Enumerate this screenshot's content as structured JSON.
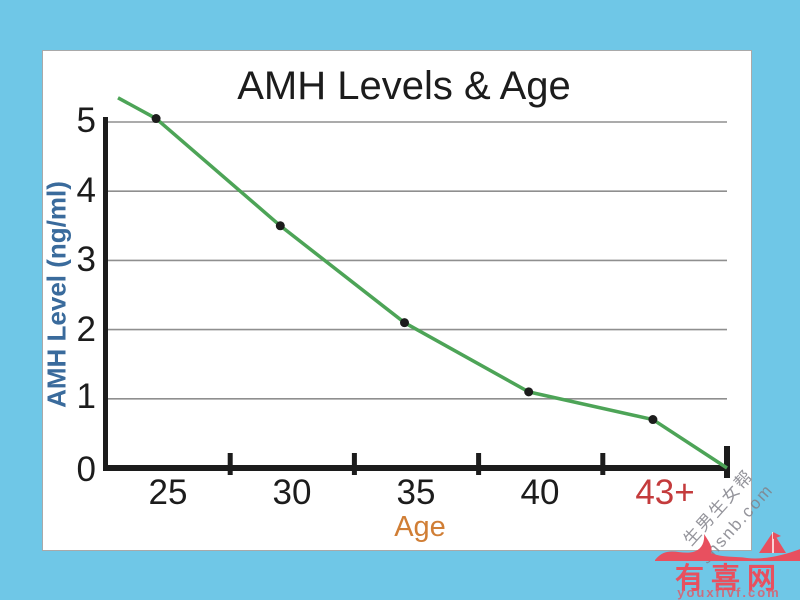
{
  "colors": {
    "background": "#6fc7e7",
    "panel": "#ffffff",
    "panel_border": "#a9a9a9",
    "text": "#1c1c1c",
    "grid": "#8f8f8f",
    "axis": "#1c1c1c",
    "line": "#4da457",
    "point": "#1c1c1c",
    "ylabel_text": "#3a6b9c",
    "xlabel_text": "#d07e35",
    "highlight": "#c43b3c",
    "watermark": "#82828a",
    "logo": "#e8505f",
    "logo_url": "#cb6e7e"
  },
  "chart_data": {
    "type": "line",
    "title": "AMH Levels & Age",
    "xlabel": "Age",
    "ylabel": "AMH Level (ng/ml)",
    "categories": [
      "25",
      "30",
      "35",
      "40",
      "43+"
    ],
    "values": [
      5.05,
      3.5,
      2.1,
      1.1,
      0.7
    ],
    "y_ticks": [
      "5",
      "4",
      "3",
      "2",
      "1",
      "0"
    ],
    "ylim": [
      0,
      5
    ],
    "grid": "horizontal-only",
    "legend": "none",
    "line_start_value": 5.35,
    "line_end_value": 0,
    "highlighted_category": "43+",
    "notes": "single green declining series with black point markers; line extends past first point at top-left and descends to 0 at axis end"
  },
  "watermark": {
    "line1": "生男生女帮",
    "line2": "snsnb.com"
  },
  "logo": {
    "name": "有喜网",
    "url": "youxiivf.com"
  }
}
